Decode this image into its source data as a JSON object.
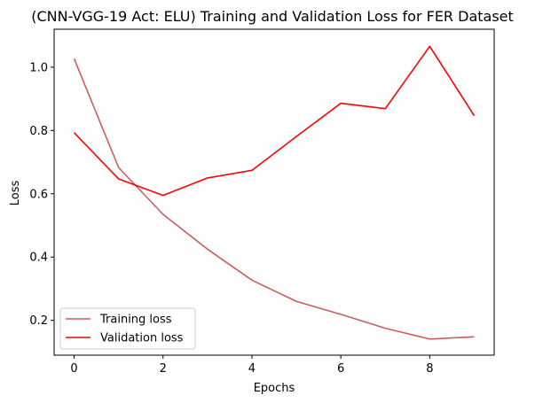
{
  "chart_data": {
    "type": "line",
    "title": "(CNN-VGG-19 Act: ELU) Training and Validation Loss for FER Dataset",
    "xlabel": "Epochs",
    "ylabel": "Loss",
    "x": [
      0,
      1,
      2,
      3,
      4,
      5,
      6,
      7,
      8,
      9
    ],
    "xlim": [
      -0.45,
      9.45
    ],
    "ylim": [
      0.09,
      1.12
    ],
    "xticks": [
      0,
      2,
      4,
      6,
      8
    ],
    "yticks": [
      0.2,
      0.4,
      0.6,
      0.8,
      1.0
    ],
    "ytick_labels": [
      "0.2",
      "0.4",
      "0.6",
      "0.8",
      "1.0"
    ],
    "grid": false,
    "legend_position": "lower-left",
    "series": [
      {
        "name": "Training loss",
        "color": "#cd5c5c",
        "values": [
          1.027,
          0.683,
          0.535,
          0.425,
          0.327,
          0.26,
          0.219,
          0.175,
          0.141,
          0.148
        ]
      },
      {
        "name": "Validation loss",
        "color": "#ff0000",
        "values": [
          0.793,
          0.647,
          0.595,
          0.65,
          0.674,
          0.781,
          0.886,
          0.869,
          1.066,
          0.847
        ]
      }
    ]
  }
}
